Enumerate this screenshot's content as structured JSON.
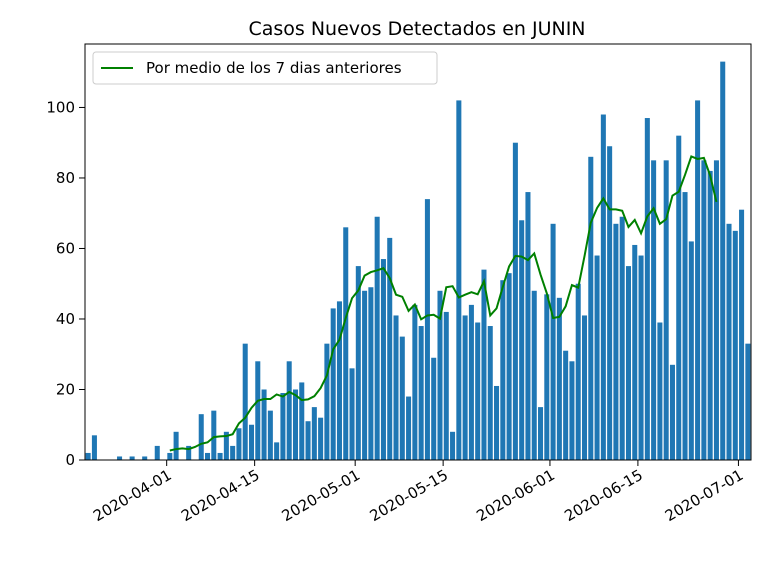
{
  "chart_data": {
    "type": "bar",
    "title": "Casos Nuevos Detectados en JUNIN",
    "xlabel": "",
    "ylabel": "",
    "x_start": "2020-03-19",
    "xlim": [
      "2020-03-19",
      "2020-07-03"
    ],
    "ylim": [
      0,
      118
    ],
    "y_ticks": [
      0,
      20,
      40,
      60,
      80,
      100
    ],
    "x_ticks": [
      "2020-04-01",
      "2020-04-15",
      "2020-05-01",
      "2020-05-15",
      "2020-06-01",
      "2020-06-15",
      "2020-07-01"
    ],
    "grid": false,
    "legend_position": "top-left",
    "series": [
      {
        "name": "",
        "kind": "bar",
        "color": "#1f77b4",
        "values": [
          2,
          7,
          0,
          0,
          0,
          1,
          0,
          1,
          0,
          1,
          0,
          4,
          0,
          2,
          8,
          0,
          4,
          0,
          13,
          2,
          14,
          2,
          8,
          4,
          9,
          33,
          10,
          28,
          20,
          14,
          5,
          19,
          28,
          20,
          22,
          11,
          15,
          12,
          33,
          43,
          45,
          66,
          26,
          55,
          48,
          49,
          69,
          57,
          63,
          41,
          35,
          18,
          44,
          38,
          74,
          29,
          48,
          42,
          8,
          102,
          41,
          44,
          39,
          54,
          38,
          21,
          51,
          53,
          90,
          68,
          76,
          48,
          15,
          47,
          67,
          46,
          31,
          28,
          50,
          41,
          86,
          58,
          98,
          89,
          67,
          69,
          55,
          61,
          58,
          97,
          85,
          39,
          85,
          27,
          92,
          76,
          62,
          102,
          85,
          82,
          85,
          113,
          67,
          65,
          71,
          33
        ]
      },
      {
        "name": "Por medio de los 7 dias anteriores",
        "kind": "line",
        "color": "#008000",
        "start_index": 13,
        "values": [
          2.7,
          3.1,
          3.3,
          3.1,
          3.7,
          4.6,
          5.0,
          6.5,
          6.7,
          6.8,
          7.3,
          10.4,
          12.0,
          14.8,
          16.8,
          17.3,
          17.3,
          18.6,
          18.0,
          19.3,
          18.4,
          17.0,
          17.2,
          18.1,
          20.4,
          24.0,
          31.4,
          34.1,
          40.3,
          45.9,
          48.1,
          52.3,
          53.3,
          53.8,
          54.4,
          51.6,
          46.9,
          46.3,
          42.3,
          44.1,
          39.9,
          41.0,
          41.2,
          40.1,
          49.0,
          49.3,
          46.1,
          46.9,
          47.6,
          47.0,
          50.7,
          41.0,
          43.0,
          49.1,
          54.9,
          57.9,
          57.7,
          56.7,
          58.6,
          52.6,
          47.3,
          40.3,
          40.6,
          43.6,
          49.6,
          48.9,
          57.8,
          67.3,
          71.5,
          74.2,
          71.1,
          71.1,
          70.7,
          66.1,
          68.1,
          64.3,
          69.1,
          71.4,
          67.0,
          68.3,
          75.0,
          76.1,
          80.9,
          86.1,
          85.4,
          85.7,
          80.7,
          73.2
        ]
      }
    ]
  }
}
